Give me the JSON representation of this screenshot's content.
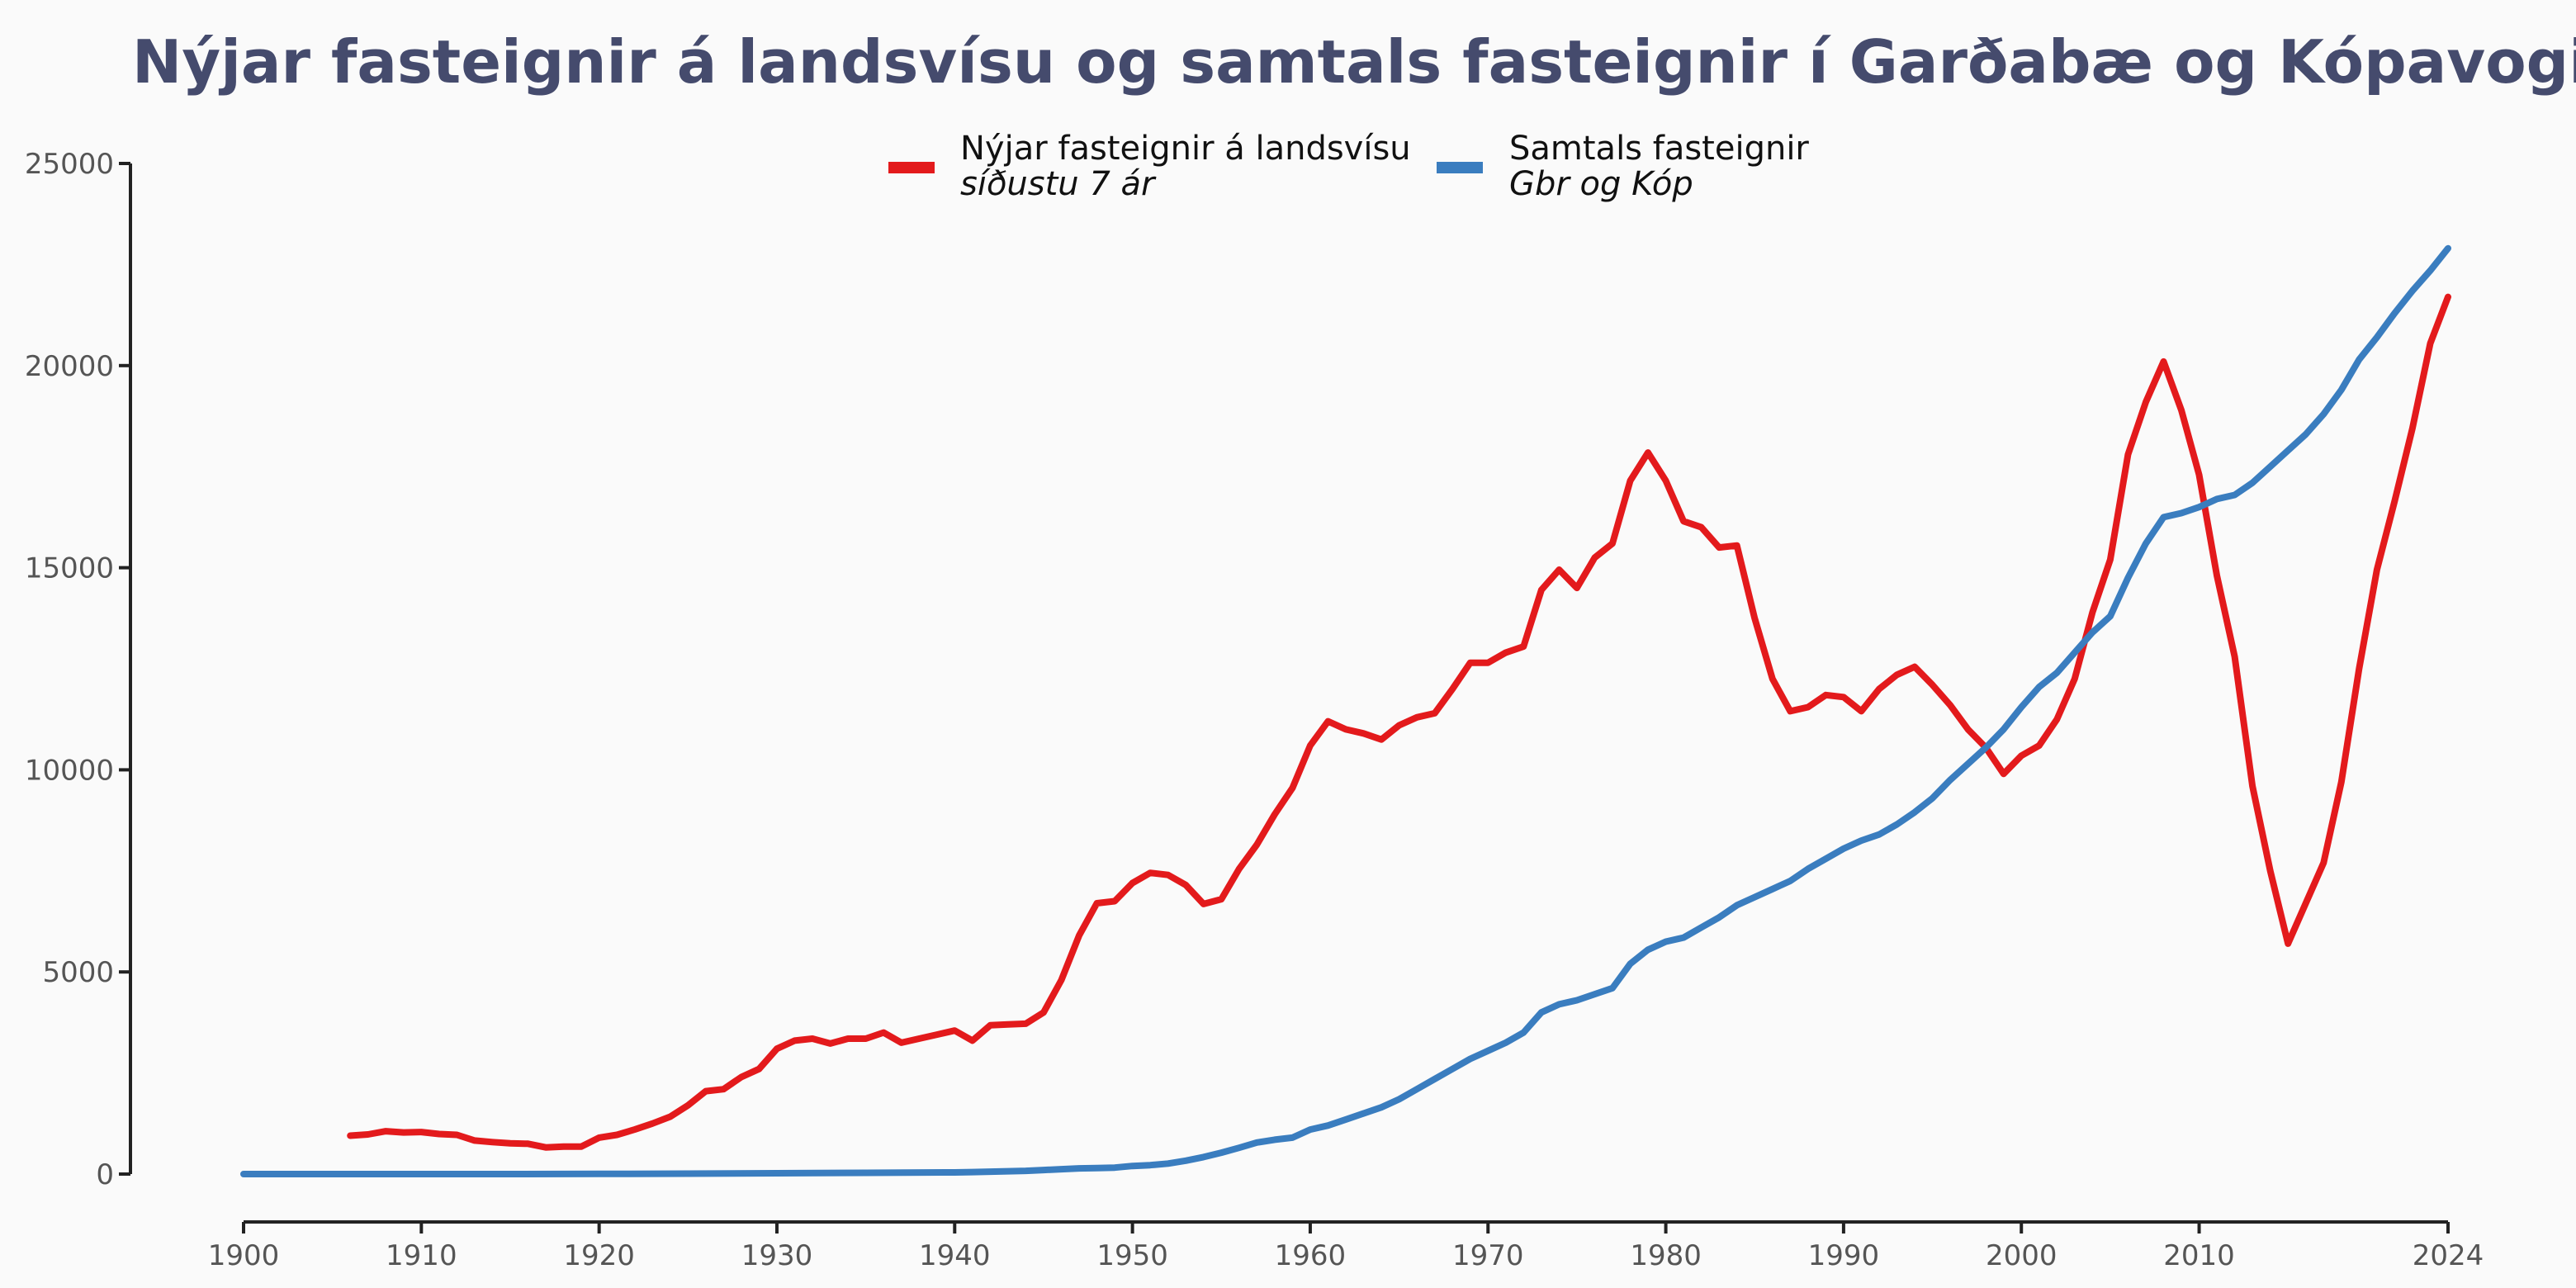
{
  "chart_data": {
    "type": "line",
    "title": "Nýjar fasteignir á landsvísu og samtals fasteignir í Garðabæ og Kópavogi",
    "xlabel": "",
    "ylabel": "",
    "xlim": [
      1900,
      2024
    ],
    "ylim": [
      0,
      25000
    ],
    "x_ticks": [
      1900,
      1910,
      1920,
      1930,
      1940,
      1950,
      1960,
      1970,
      1980,
      1990,
      2000,
      2010,
      2024
    ],
    "y_ticks": [
      0,
      5000,
      10000,
      15000,
      20000,
      25000
    ],
    "grid": false,
    "legend_position": "top-center",
    "series": [
      {
        "name": "Nýjar fasteignir á landsvísu",
        "subtitle": "síðustu 7 ár",
        "color": "#e31a1c",
        "points": [
          [
            1906,
            950
          ],
          [
            1907,
            980
          ],
          [
            1908,
            1060
          ],
          [
            1909,
            1030
          ],
          [
            1910,
            1040
          ],
          [
            1911,
            990
          ],
          [
            1912,
            970
          ],
          [
            1913,
            830
          ],
          [
            1914,
            790
          ],
          [
            1915,
            760
          ],
          [
            1916,
            750
          ],
          [
            1917,
            660
          ],
          [
            1918,
            680
          ],
          [
            1919,
            680
          ],
          [
            1920,
            900
          ],
          [
            1921,
            970
          ],
          [
            1922,
            1100
          ],
          [
            1923,
            1250
          ],
          [
            1924,
            1420
          ],
          [
            1925,
            1700
          ],
          [
            1926,
            2050
          ],
          [
            1927,
            2100
          ],
          [
            1928,
            2400
          ],
          [
            1929,
            2600
          ],
          [
            1930,
            3100
          ],
          [
            1931,
            3300
          ],
          [
            1932,
            3350
          ],
          [
            1933,
            3230
          ],
          [
            1934,
            3350
          ],
          [
            1935,
            3350
          ],
          [
            1936,
            3500
          ],
          [
            1937,
            3250
          ],
          [
            1938,
            3350
          ],
          [
            1939,
            3450
          ],
          [
            1940,
            3550
          ],
          [
            1941,
            3300
          ],
          [
            1942,
            3680
          ],
          [
            1943,
            3700
          ],
          [
            1944,
            3720
          ],
          [
            1945,
            4000
          ],
          [
            1946,
            4800
          ],
          [
            1947,
            5900
          ],
          [
            1948,
            6700
          ],
          [
            1949,
            6750
          ],
          [
            1950,
            7200
          ],
          [
            1951,
            7450
          ],
          [
            1952,
            7400
          ],
          [
            1953,
            7150
          ],
          [
            1954,
            6680
          ],
          [
            1955,
            6800
          ],
          [
            1956,
            7550
          ],
          [
            1957,
            8150
          ],
          [
            1958,
            8900
          ],
          [
            1959,
            9550
          ],
          [
            1960,
            10600
          ],
          [
            1961,
            11200
          ],
          [
            1962,
            11000
          ],
          [
            1963,
            10900
          ],
          [
            1964,
            10750
          ],
          [
            1965,
            11100
          ],
          [
            1966,
            11300
          ],
          [
            1967,
            11400
          ],
          [
            1968,
            12000
          ],
          [
            1969,
            12650
          ],
          [
            1970,
            12650
          ],
          [
            1971,
            12900
          ],
          [
            1972,
            13050
          ],
          [
            1973,
            14450
          ],
          [
            1974,
            14950
          ],
          [
            1975,
            14500
          ],
          [
            1976,
            15250
          ],
          [
            1977,
            15600
          ],
          [
            1978,
            17150
          ],
          [
            1979,
            17850
          ],
          [
            1980,
            17150
          ],
          [
            1981,
            16150
          ],
          [
            1982,
            16000
          ],
          [
            1983,
            15500
          ],
          [
            1984,
            15550
          ],
          [
            1985,
            13750
          ],
          [
            1986,
            12250
          ],
          [
            1987,
            11450
          ],
          [
            1988,
            11550
          ],
          [
            1989,
            11850
          ],
          [
            1990,
            11800
          ],
          [
            1991,
            11450
          ],
          [
            1992,
            12000
          ],
          [
            1993,
            12350
          ],
          [
            1994,
            12550
          ],
          [
            1995,
            12100
          ],
          [
            1996,
            11600
          ],
          [
            1997,
            11000
          ],
          [
            1998,
            10550
          ],
          [
            1999,
            9900
          ],
          [
            2000,
            10350
          ],
          [
            2001,
            10600
          ],
          [
            2002,
            11250
          ],
          [
            2003,
            12250
          ],
          [
            2004,
            13900
          ],
          [
            2005,
            15200
          ],
          [
            2006,
            17800
          ],
          [
            2007,
            19100
          ],
          [
            2008,
            20100
          ],
          [
            2009,
            18900
          ],
          [
            2010,
            17300
          ],
          [
            2011,
            14800
          ],
          [
            2012,
            12800
          ],
          [
            2013,
            9600
          ],
          [
            2014,
            7500
          ],
          [
            2015,
            5700
          ],
          [
            2016,
            6700
          ],
          [
            2017,
            7700
          ],
          [
            2018,
            9700
          ],
          [
            2019,
            12500
          ],
          [
            2020,
            14950
          ],
          [
            2021,
            16650
          ],
          [
            2022,
            18450
          ],
          [
            2023,
            20550
          ],
          [
            2024,
            21700
          ]
        ]
      },
      {
        "name": "Samtals fasteignir",
        "subtitle": "Gbr og Kóp",
        "color": "#3a7dbf",
        "points": [
          [
            1900,
            0
          ],
          [
            1905,
            0
          ],
          [
            1910,
            0
          ],
          [
            1915,
            0
          ],
          [
            1920,
            5
          ],
          [
            1925,
            10
          ],
          [
            1930,
            20
          ],
          [
            1935,
            30
          ],
          [
            1940,
            40
          ],
          [
            1941,
            50
          ],
          [
            1942,
            60
          ],
          [
            1943,
            70
          ],
          [
            1944,
            80
          ],
          [
            1945,
            100
          ],
          [
            1946,
            120
          ],
          [
            1947,
            140
          ],
          [
            1948,
            150
          ],
          [
            1949,
            160
          ],
          [
            1950,
            200
          ],
          [
            1951,
            220
          ],
          [
            1952,
            260
          ],
          [
            1953,
            330
          ],
          [
            1954,
            420
          ],
          [
            1955,
            530
          ],
          [
            1956,
            650
          ],
          [
            1957,
            780
          ],
          [
            1958,
            850
          ],
          [
            1959,
            900
          ],
          [
            1960,
            1100
          ],
          [
            1961,
            1200
          ],
          [
            1962,
            1350
          ],
          [
            1963,
            1500
          ],
          [
            1964,
            1650
          ],
          [
            1965,
            1850
          ],
          [
            1966,
            2100
          ],
          [
            1967,
            2350
          ],
          [
            1968,
            2600
          ],
          [
            1969,
            2850
          ],
          [
            1970,
            3050
          ],
          [
            1971,
            3250
          ],
          [
            1972,
            3500
          ],
          [
            1973,
            4000
          ],
          [
            1974,
            4200
          ],
          [
            1975,
            4300
          ],
          [
            1976,
            4450
          ],
          [
            1977,
            4600
          ],
          [
            1978,
            5200
          ],
          [
            1979,
            5550
          ],
          [
            1980,
            5750
          ],
          [
            1981,
            5850
          ],
          [
            1982,
            6100
          ],
          [
            1983,
            6350
          ],
          [
            1984,
            6650
          ],
          [
            1985,
            6850
          ],
          [
            1986,
            7050
          ],
          [
            1987,
            7250
          ],
          [
            1988,
            7550
          ],
          [
            1989,
            7800
          ],
          [
            1990,
            8050
          ],
          [
            1991,
            8250
          ],
          [
            1992,
            8400
          ],
          [
            1993,
            8650
          ],
          [
            1994,
            8950
          ],
          [
            1995,
            9300
          ],
          [
            1996,
            9750
          ],
          [
            1997,
            10150
          ],
          [
            1998,
            10550
          ],
          [
            1999,
            11000
          ],
          [
            2000,
            11550
          ],
          [
            2001,
            12050
          ],
          [
            2002,
            12400
          ],
          [
            2003,
            12900
          ],
          [
            2004,
            13400
          ],
          [
            2005,
            13800
          ],
          [
            2006,
            14750
          ],
          [
            2007,
            15600
          ],
          [
            2008,
            16250
          ],
          [
            2009,
            16350
          ],
          [
            2010,
            16500
          ],
          [
            2011,
            16700
          ],
          [
            2012,
            16800
          ],
          [
            2013,
            17100
          ],
          [
            2014,
            17500
          ],
          [
            2015,
            17900
          ],
          [
            2016,
            18300
          ],
          [
            2017,
            18800
          ],
          [
            2018,
            19400
          ],
          [
            2019,
            20150
          ],
          [
            2020,
            20700
          ],
          [
            2021,
            21300
          ],
          [
            2022,
            21850
          ],
          [
            2023,
            22350
          ],
          [
            2024,
            22900
          ]
        ]
      }
    ]
  }
}
